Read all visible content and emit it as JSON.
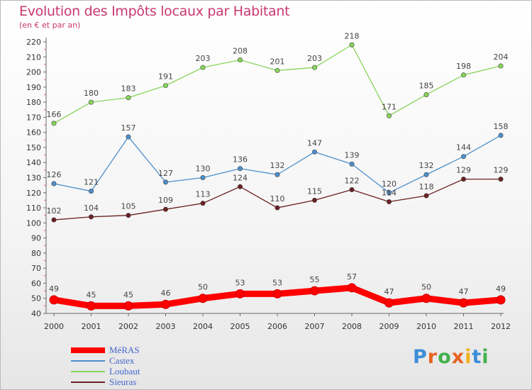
{
  "header": {
    "title": "Evolution des Impôts locaux par Habitant",
    "subtitle": "(en € et par an)"
  },
  "logo": {
    "text": "Proxiti",
    "colors": [
      "#3b8ed8",
      "#e8621f",
      "#43b04b",
      "#e8621f",
      "#f2b01e",
      "#3b8ed8",
      "#43b04b"
    ]
  },
  "chart_data": {
    "type": "line",
    "title": "Evolution des Impôts locaux par Habitant",
    "subtitle": "(en € et par an)",
    "x": [
      "2000",
      "2001",
      "2002",
      "2003",
      "2004",
      "2005",
      "2006",
      "2007",
      "2008",
      "2009",
      "2010",
      "2011",
      "2012"
    ],
    "ylim": [
      40,
      220
    ],
    "yticks": [
      40,
      50,
      60,
      70,
      80,
      90,
      100,
      110,
      120,
      130,
      140,
      150,
      160,
      170,
      180,
      190,
      200,
      210,
      220
    ],
    "grid": false,
    "legend_position": "bottom-left",
    "series": [
      {
        "name": "MéRAS",
        "color": "#ff0000",
        "values": [
          49,
          45,
          45,
          46,
          50,
          53,
          53,
          55,
          57,
          47,
          50,
          47,
          49
        ]
      },
      {
        "name": "Castex",
        "color": "#4d8fcc",
        "values": [
          126,
          121,
          157,
          127,
          130,
          136,
          132,
          147,
          139,
          120,
          132,
          144,
          158
        ]
      },
      {
        "name": "Loubaut",
        "color": "#86d45a",
        "values": [
          166,
          180,
          183,
          191,
          203,
          208,
          201,
          203,
          218,
          171,
          185,
          198,
          204
        ]
      },
      {
        "name": "Sieuras",
        "color": "#6b1f22",
        "values": [
          102,
          104,
          105,
          109,
          113,
          124,
          110,
          115,
          122,
          114,
          118,
          129,
          129
        ]
      }
    ]
  }
}
